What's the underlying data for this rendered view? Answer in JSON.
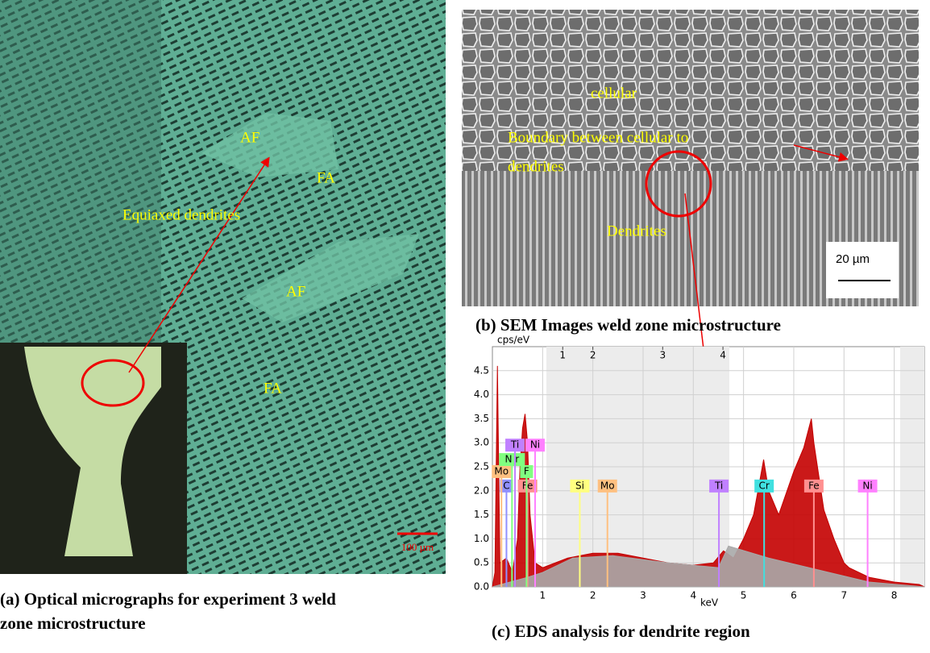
{
  "panel_a": {
    "caption_lines": [
      "(a) Optical micrographs for experiment  3 weld",
      "zone microstructure"
    ],
    "labels": [
      "AF",
      "FA",
      "Equiaxed dendrites",
      "AF",
      "FA"
    ],
    "scale_bar": "100 µm"
  },
  "panel_b": {
    "caption": "(b) SEM Images weld zone microstructure",
    "labels": [
      "cellular",
      "Boundary between cellular to",
      "dendrites",
      "Dendrites"
    ],
    "scale_bar": "20 µm"
  },
  "chart_data": {
    "type": "area",
    "caption": "(c) EDS analysis for dendrite region",
    "y_label": "cps/eV",
    "x_label": "keV",
    "xlim": [
      0,
      8.6
    ],
    "ylim": [
      0,
      5
    ],
    "xticks": [
      1,
      2,
      3,
      4,
      5,
      6,
      7,
      8
    ],
    "yticks": [
      {
        "value": 0,
        "label": "0.0"
      },
      0.5,
      {
        "value": 1,
        "label": "1.0"
      },
      1.5,
      {
        "value": 2,
        "label": "2.0"
      },
      2.5,
      {
        "value": 3,
        "label": "3.0"
      },
      3.5,
      {
        "value": 4,
        "label": "4.0"
      },
      4.5
    ],
    "region_markers": [
      {
        "value": 1.4,
        "label": "1"
      },
      {
        "value": 2,
        "label": "2"
      },
      {
        "value": 3.39,
        "label": "3"
      },
      {
        "value": 4.59,
        "label": "4"
      }
    ],
    "series": [
      {
        "color": "#c40000",
        "x": [
          0,
          0.05,
          0.1,
          0.15,
          0.28,
          0.4,
          0.5,
          0.55,
          0.6,
          0.65,
          0.7,
          0.75,
          0.85,
          1,
          1.5,
          2,
          2.5,
          3,
          3.5,
          4,
          4.4,
          4.6,
          4.8,
          5,
          5.2,
          5.4,
          5.5,
          5.7,
          6,
          6.2,
          6.35,
          6.4,
          6.6,
          6.8,
          7,
          7.1,
          7.5,
          8,
          8.5,
          8.6
        ],
        "values": [
          0,
          0.3,
          4.6,
          0.5,
          0.6,
          0.3,
          1,
          2.5,
          3.3,
          3.6,
          3,
          1.5,
          0.5,
          0.4,
          0.6,
          0.7,
          0.7,
          0.6,
          0.5,
          0.45,
          0.5,
          0.75,
          0.6,
          1,
          1.5,
          2.65,
          2,
          1.5,
          2.4,
          2.9,
          3.5,
          3,
          1.6,
          1,
          0.5,
          0.4,
          0.2,
          0.1,
          0.05,
          0
        ]
      },
      {
        "color": "#a8a8a8",
        "x": [
          0,
          0.7,
          1,
          1.6,
          2.4,
          3.5,
          4.5,
          4.7,
          5.5,
          6.5,
          7.5,
          8.6
        ],
        "values": [
          0,
          0.2,
          0.3,
          0.6,
          0.65,
          0.5,
          0.4,
          0.85,
          0.6,
          0.35,
          0.1,
          0
        ]
      }
    ],
    "elements": [
      {
        "label": "C",
        "energy": 0.28,
        "level": 2.1,
        "color": "#9090ff"
      },
      {
        "label": "Fe",
        "energy": 0.7,
        "level": 2.1,
        "color": "#ff9090"
      },
      {
        "label": "Si",
        "energy": 1.74,
        "level": 2.1,
        "color": "#ffff80"
      },
      {
        "label": "Mo",
        "energy": 2.29,
        "level": 2.1,
        "color": "#ffc080"
      },
      {
        "label": "Ti",
        "energy": 4.51,
        "level": 2.1,
        "color": "#c080ff"
      },
      {
        "label": "Cr",
        "energy": 5.41,
        "level": 2.1,
        "color": "#40e0e0"
      },
      {
        "label": "Fe",
        "energy": 6.4,
        "level": 2.1,
        "color": "#ff9090"
      },
      {
        "label": "Ni",
        "energy": 7.47,
        "level": 2.1,
        "color": "#ff80ff"
      },
      {
        "label": "Mo",
        "energy": 0.18,
        "level": 2.4,
        "color": "#ffc080"
      },
      {
        "label": "F",
        "energy": 0.68,
        "level": 2.4,
        "color": "#80ff80"
      },
      {
        "label": "N r",
        "energy": 0.39,
        "level": 2.65,
        "color": "#80ff80"
      },
      {
        "label": "Ti",
        "energy": 0.45,
        "level": 2.95,
        "color": "#c080ff"
      },
      {
        "label": "Ni",
        "energy": 0.85,
        "level": 2.95,
        "color": "#ff80ff"
      }
    ]
  }
}
